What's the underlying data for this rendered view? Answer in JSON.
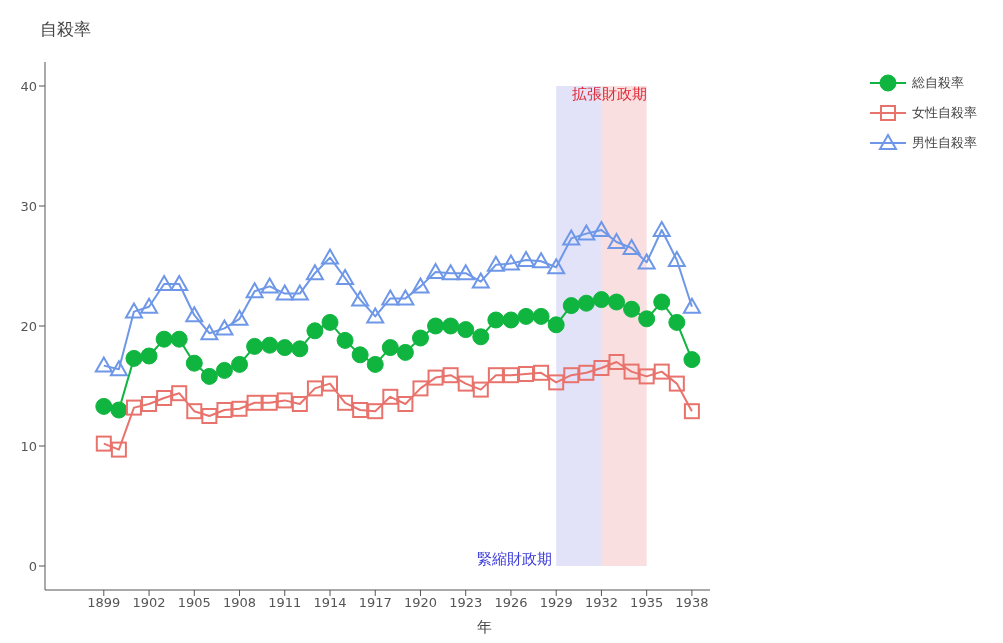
{
  "chart_data": {
    "type": "line",
    "title": "自殺率",
    "xlabel": "年",
    "x": [
      1899,
      1900,
      1901,
      1902,
      1903,
      1904,
      1905,
      1906,
      1907,
      1908,
      1909,
      1910,
      1911,
      1912,
      1913,
      1914,
      1915,
      1916,
      1917,
      1918,
      1919,
      1920,
      1921,
      1922,
      1923,
      1924,
      1925,
      1926,
      1927,
      1928,
      1929,
      1930,
      1931,
      1932,
      1933,
      1934,
      1935,
      1936,
      1937,
      1938
    ],
    "series": [
      {
        "name": "総自殺率",
        "color": "#0fb53f",
        "marker": "circle",
        "values": [
          13.3,
          13.0,
          17.3,
          17.5,
          18.9,
          18.9,
          16.9,
          15.8,
          16.3,
          16.8,
          18.3,
          18.4,
          18.2,
          18.1,
          19.6,
          20.3,
          18.8,
          17.6,
          16.8,
          18.2,
          17.8,
          19.0,
          20.0,
          20.0,
          19.7,
          19.1,
          20.5,
          20.5,
          20.8,
          20.8,
          20.1,
          21.7,
          21.9,
          22.2,
          22.0,
          21.4,
          20.6,
          22.0,
          20.3,
          17.2
        ]
      },
      {
        "name": "女性自殺率",
        "color": "#e8736c",
        "marker": "square",
        "values": [
          10.2,
          9.7,
          13.2,
          13.5,
          14.0,
          14.4,
          12.9,
          12.5,
          13.0,
          13.1,
          13.6,
          13.6,
          13.8,
          13.5,
          14.8,
          15.2,
          13.6,
          13.0,
          12.9,
          14.1,
          13.5,
          14.8,
          15.7,
          15.9,
          15.2,
          14.7,
          15.9,
          15.9,
          16.0,
          16.1,
          15.3,
          15.9,
          16.1,
          16.5,
          17.0,
          16.2,
          15.8,
          16.2,
          15.2,
          12.9
        ]
      },
      {
        "name": "男性自殺率",
        "color": "#6e97e8",
        "marker": "triangle",
        "values": [
          16.7,
          16.4,
          21.2,
          21.6,
          23.5,
          23.5,
          20.9,
          19.4,
          19.8,
          20.6,
          22.9,
          23.3,
          22.7,
          22.7,
          24.4,
          25.7,
          24.0,
          22.2,
          20.8,
          22.3,
          22.3,
          23.3,
          24.5,
          24.4,
          24.4,
          23.7,
          25.1,
          25.2,
          25.5,
          25.4,
          24.9,
          27.3,
          27.7,
          28.0,
          27.0,
          26.5,
          25.3,
          28.0,
          25.5,
          21.6
        ]
      }
    ],
    "xlim": [
      1895.1,
      1939.2
    ],
    "xticks": [
      1899,
      1902,
      1905,
      1908,
      1911,
      1914,
      1917,
      1920,
      1923,
      1926,
      1929,
      1932,
      1935,
      1938
    ],
    "ylim": [
      -2,
      42
    ],
    "yticks": [
      0,
      10,
      20,
      30,
      40
    ],
    "bands": [
      {
        "axis": "x",
        "from": 1929,
        "to": 1932,
        "label": "緊縮財政期",
        "color": "#3a3ad8"
      },
      {
        "axis": "x",
        "from": 1932,
        "to": 1935,
        "label": "拡張財政期",
        "color": "#e02a36"
      }
    ],
    "grid": false,
    "legend": "top right",
    "line_style": "solid"
  }
}
